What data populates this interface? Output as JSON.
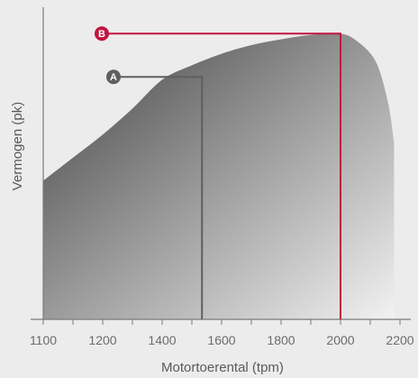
{
  "chart_data": {
    "type": "area",
    "title": "",
    "xlabel": "Motortoerental (tpm)",
    "ylabel": "Vermogen (pk)",
    "x_ticks": [
      "1100",
      "1200",
      "1400",
      "1600",
      "1800",
      "2000",
      "2200"
    ],
    "x_tick_values": [
      0,
      1,
      2,
      3,
      4,
      5,
      6
    ],
    "xlim": [
      0,
      6
    ],
    "ylim": [
      0,
      100
    ],
    "grid": false,
    "series": [
      {
        "x": [
          0,
          0.5,
          1,
          1.5,
          2,
          2.5,
          3,
          3.5,
          4,
          4.5,
          5,
          5.3,
          5.6,
          5.8,
          5.9
        ],
        "y": [
          48,
          56,
          64,
          73,
          83,
          88,
          92,
          95,
          97,
          98.5,
          99,
          96,
          89,
          75,
          61
        ]
      }
    ],
    "markers": [
      {
        "label": "A",
        "x": 2.67,
        "y": 84,
        "color": "#5f5f5f"
      },
      {
        "label": "B",
        "x": 5,
        "y": 99,
        "color": "#c0163f"
      }
    ]
  }
}
